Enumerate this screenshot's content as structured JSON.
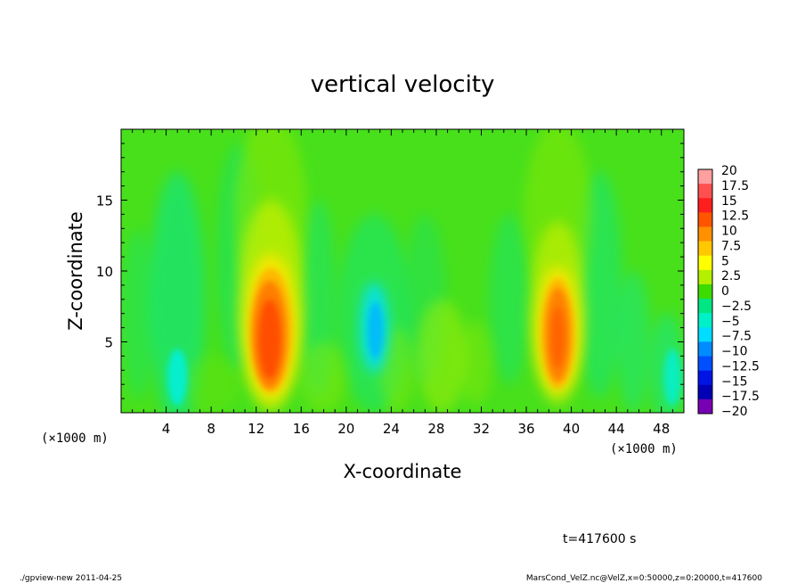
{
  "chart_data": {
    "type": "heatmap",
    "title": "vertical velocity",
    "xlabel": "X-coordinate",
    "ylabel": "Z-coordinate",
    "x_unit": "(×1000 m)",
    "y_unit": "(×1000 m)",
    "xlim": [
      0,
      50
    ],
    "ylim": [
      0,
      20
    ],
    "x_ticks": [
      4,
      8,
      12,
      16,
      20,
      24,
      28,
      32,
      36,
      40,
      44,
      48
    ],
    "y_ticks": [
      5,
      10,
      15
    ],
    "x_tick_labels": [
      "4",
      "8",
      "12",
      "16",
      "20",
      "24",
      "28",
      "32",
      "36",
      "40",
      "44",
      "48"
    ],
    "y_tick_labels": [
      "5",
      "10",
      "15"
    ],
    "colorbar": {
      "levels": [
        20,
        17.5,
        15,
        12.5,
        10,
        7.5,
        5,
        2.5,
        0,
        -2.5,
        -5,
        -7.5,
        -10,
        -12.5,
        -15,
        -17.5,
        -20
      ],
      "labels": [
        "20",
        "17.5",
        "15",
        "12.5",
        "10",
        "7.5",
        "5",
        "2.5",
        "0",
        "−2.5",
        "−5",
        "−7.5",
        "−10",
        "−12.5",
        "−15",
        "−17.5",
        "−20"
      ],
      "colors": [
        "#ff9f9f",
        "#ff5050",
        "#ff1e1e",
        "#ff5500",
        "#ff9000",
        "#ffc800",
        "#ffff00",
        "#b4f000",
        "#3cdc00",
        "#00e682",
        "#00f0c8",
        "#00dcff",
        "#008cff",
        "#0050ff",
        "#0014e6",
        "#0000b4",
        "#7800b4"
      ]
    },
    "features": [
      {
        "type": "updraft",
        "x": 13.2,
        "z": 5.2,
        "w_max": 14
      },
      {
        "type": "updraft",
        "x": 38.8,
        "z": 5.5,
        "w_max": 12.5
      },
      {
        "type": "downdraft",
        "x": 22.5,
        "z": 5.8,
        "w_min": -9
      },
      {
        "type": "downdraft",
        "x": 5.0,
        "z": 2.5,
        "w_min": -5
      }
    ]
  },
  "annotation_time": "t=417600 s",
  "footer_left": "./gpview-new  2011-04-25",
  "footer_right": "MarsCond_VelZ.nc@VelZ,x=0:50000,z=0:20000,t=417600"
}
